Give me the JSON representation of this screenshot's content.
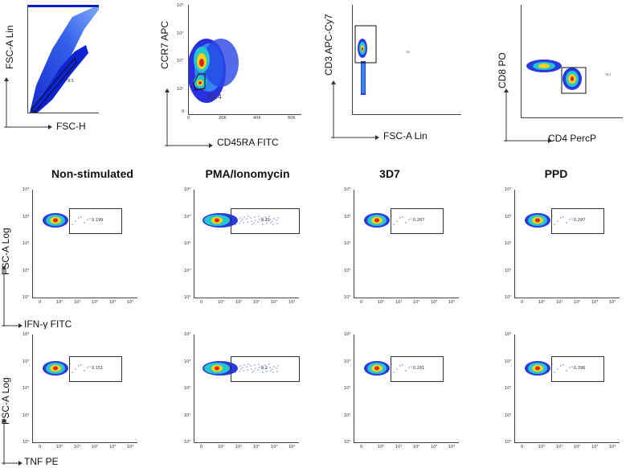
{
  "top_row": {
    "axis1": {
      "y": "FSC-A Lin",
      "x": "FSC-H"
    },
    "axis2": {
      "y": "CCR7 APC",
      "x": "CD45RA FITC",
      "gate_value": "22.4",
      "xticks": [
        "0",
        "20K",
        "40K",
        "60K"
      ],
      "yticks": [
        "10⁴",
        "10³",
        "10²",
        "10¹",
        "0"
      ]
    },
    "axis3": {
      "y": "CD3 APC-Cy7",
      "x": "FSC-A Lin"
    },
    "axis4": {
      "y": "CD8 PO",
      "x": "CD4 PercP"
    }
  },
  "titles": [
    "Non-stimulated",
    "PMA/Ionomycin",
    "3D7",
    "PPD"
  ],
  "row_ifn": {
    "ylabel": "FSC-A Log",
    "xlabel": "IFN-γ FITC",
    "values": [
      "0.199",
      "4.31",
      "0.267",
      "0.297"
    ]
  },
  "row_tnf": {
    "ylabel": "FSC-A Log",
    "xlabel": "TNF PE",
    "values": [
      "0.151",
      "4.2",
      "0.281",
      "0.396"
    ]
  },
  "colors": {
    "low": "#1a2bd6",
    "mid": "#22c4c0",
    "high": "#f7e01a",
    "peak": "#e3241b"
  }
}
